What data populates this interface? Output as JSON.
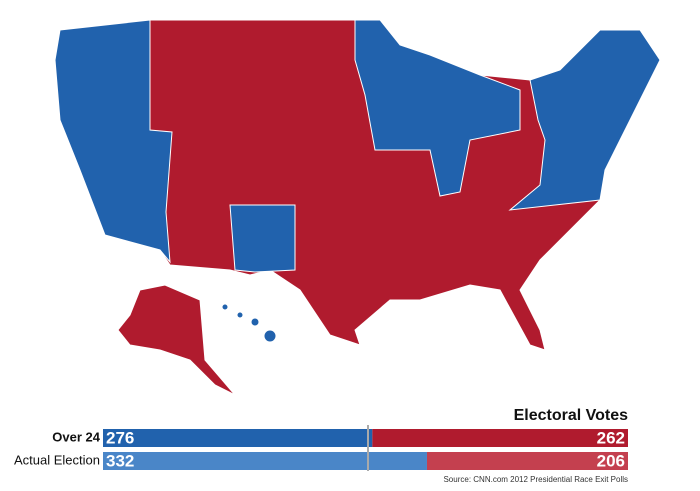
{
  "title": "Electoral Votes",
  "rows": [
    {
      "label": "Over 24",
      "dem": 276,
      "rep": 262
    },
    {
      "label": "Actual Election",
      "dem": 332,
      "rep": 206
    }
  ],
  "source": "Source: CNN.com 2012 Presidential Race Exit Polls"
}
